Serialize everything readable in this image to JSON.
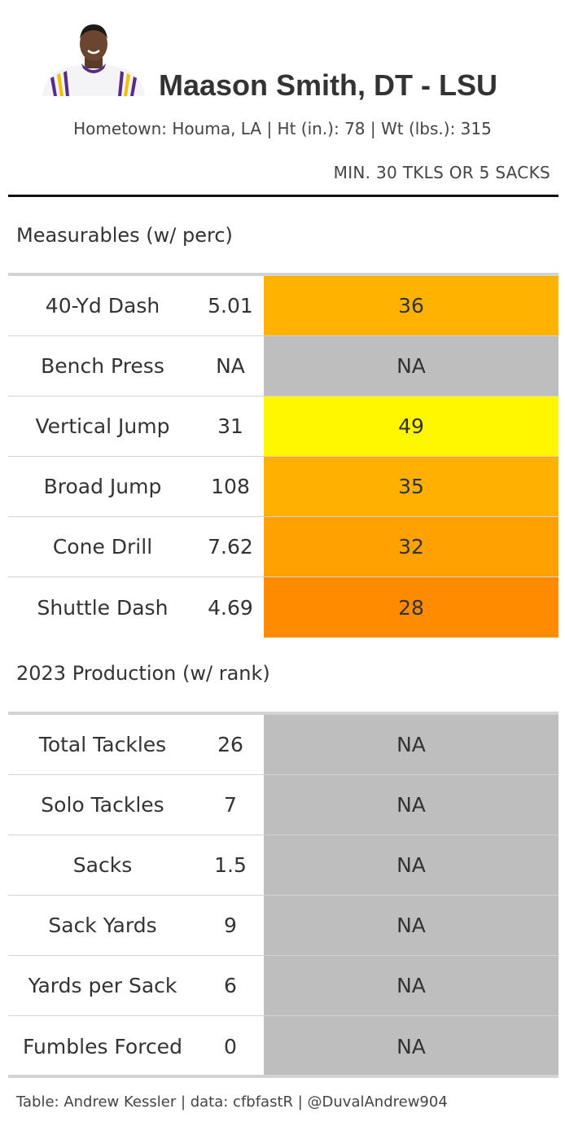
{
  "header": {
    "title": "Maason Smith, DT - LSU",
    "subtitle": "Hometown: Houma, LA | Ht (in.): 78 | Wt (lbs.): 315",
    "note": "MIN. 30 TKLS OR 5 SACKS",
    "headshot_icon": "player-headshot"
  },
  "measurables": {
    "label": "Measurables (w/ perc)",
    "rows": [
      {
        "metric": "40-Yd Dash",
        "value": "5.01",
        "pct": "36",
        "color": "#FFB300"
      },
      {
        "metric": "Bench Press",
        "value": "NA",
        "pct": "NA",
        "color": "#BEBEBE"
      },
      {
        "metric": "Vertical Jump",
        "value": "31",
        "pct": "49",
        "color": "#FFF700"
      },
      {
        "metric": "Broad Jump",
        "value": "108",
        "pct": "35",
        "color": "#FFB000"
      },
      {
        "metric": "Cone Drill",
        "value": "7.62",
        "pct": "32",
        "color": "#FFA100"
      },
      {
        "metric": "Shuttle Dash",
        "value": "4.69",
        "pct": "28",
        "color": "#FF8C00"
      }
    ]
  },
  "production": {
    "label": "2023 Production (w/ rank)",
    "rows": [
      {
        "metric": "Total Tackles",
        "value": "26",
        "rank": "NA",
        "color": "#BEBEBE"
      },
      {
        "metric": "Solo Tackles",
        "value": "7",
        "rank": "NA",
        "color": "#BEBEBE"
      },
      {
        "metric": "Sacks",
        "value": "1.5",
        "rank": "NA",
        "color": "#BEBEBE"
      },
      {
        "metric": "Sack Yards",
        "value": "9",
        "rank": "NA",
        "color": "#BEBEBE"
      },
      {
        "metric": "Yards per Sack",
        "value": "6",
        "rank": "NA",
        "color": "#BEBEBE"
      },
      {
        "metric": "Fumbles Forced",
        "value": "0",
        "rank": "NA",
        "color": "#BEBEBE"
      }
    ]
  },
  "footer": {
    "text": "Table: Andrew Kessler | data: cfbfastR | @DuvalAndrew904"
  }
}
